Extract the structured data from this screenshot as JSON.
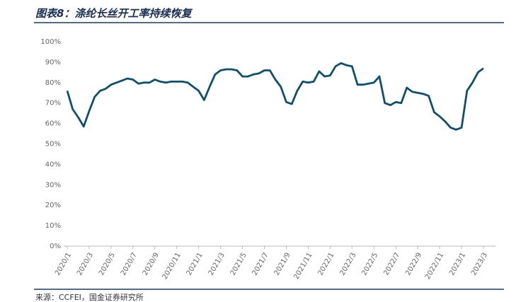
{
  "chart_data": {
    "type": "line",
    "title": "图表8：涤纶长丝开工率持续恢复",
    "source": "来源：CCFEI，国金证券研究所",
    "categories": [
      "2020/1",
      null,
      null,
      null,
      "2020/3",
      null,
      null,
      null,
      "2020/5",
      null,
      null,
      null,
      "2020/7",
      null,
      null,
      null,
      "2020/9",
      null,
      null,
      null,
      "2020/11",
      null,
      null,
      null,
      "2021/1",
      null,
      null,
      null,
      "2021/3",
      null,
      null,
      null,
      "2021/5",
      null,
      null,
      null,
      "2021/7",
      null,
      null,
      null,
      "2021/9",
      null,
      null,
      null,
      "2021/11",
      null,
      null,
      null,
      "2022/1",
      null,
      null,
      null,
      "2022/3",
      null,
      null,
      null,
      "2022/5",
      null,
      null,
      null,
      "2022/7",
      null,
      null,
      null,
      "2022/9",
      null,
      null,
      null,
      "2022/11",
      null,
      null,
      null,
      "2023/1",
      null,
      null,
      null,
      "2023/3"
    ],
    "series": [
      {
        "name": "涤纶长丝开工率",
        "color": "#0d5070",
        "values": [
          76,
          67,
          63,
          58.5,
          66,
          73,
          76,
          77,
          79,
          80,
          81,
          82,
          81.5,
          79.5,
          80,
          80,
          81.5,
          80.5,
          80,
          80.5,
          80.5,
          80.5,
          80,
          78,
          76,
          71.5,
          78,
          84,
          86,
          86.5,
          86.5,
          86,
          83,
          83,
          84,
          84.5,
          86,
          86,
          81.5,
          78,
          70.5,
          69.5,
          76,
          80.5,
          80,
          80.5,
          85.5,
          83,
          83.5,
          88,
          89.5,
          88.5,
          88,
          79,
          79,
          79.5,
          80,
          83,
          70,
          69,
          70.5,
          70,
          77.5,
          75.5,
          75,
          74.5,
          73.5,
          65.5,
          63.5,
          61,
          58,
          57,
          58,
          76,
          80,
          85,
          87
        ]
      }
    ],
    "ylim": [
      0,
      100
    ],
    "yticks": [
      {
        "value": 0,
        "label": "0%"
      },
      {
        "value": 10,
        "label": "10%"
      },
      {
        "value": 20,
        "label": "20%"
      },
      {
        "value": 30,
        "label": "30%"
      },
      {
        "value": 40,
        "label": "40%"
      },
      {
        "value": 50,
        "label": "50%"
      },
      {
        "value": 60,
        "label": "60%"
      },
      {
        "value": 70,
        "label": "70%"
      },
      {
        "value": 80,
        "label": "80%"
      },
      {
        "value": 90,
        "label": "90%"
      },
      {
        "value": 100,
        "label": "100%"
      }
    ],
    "grid": false
  }
}
